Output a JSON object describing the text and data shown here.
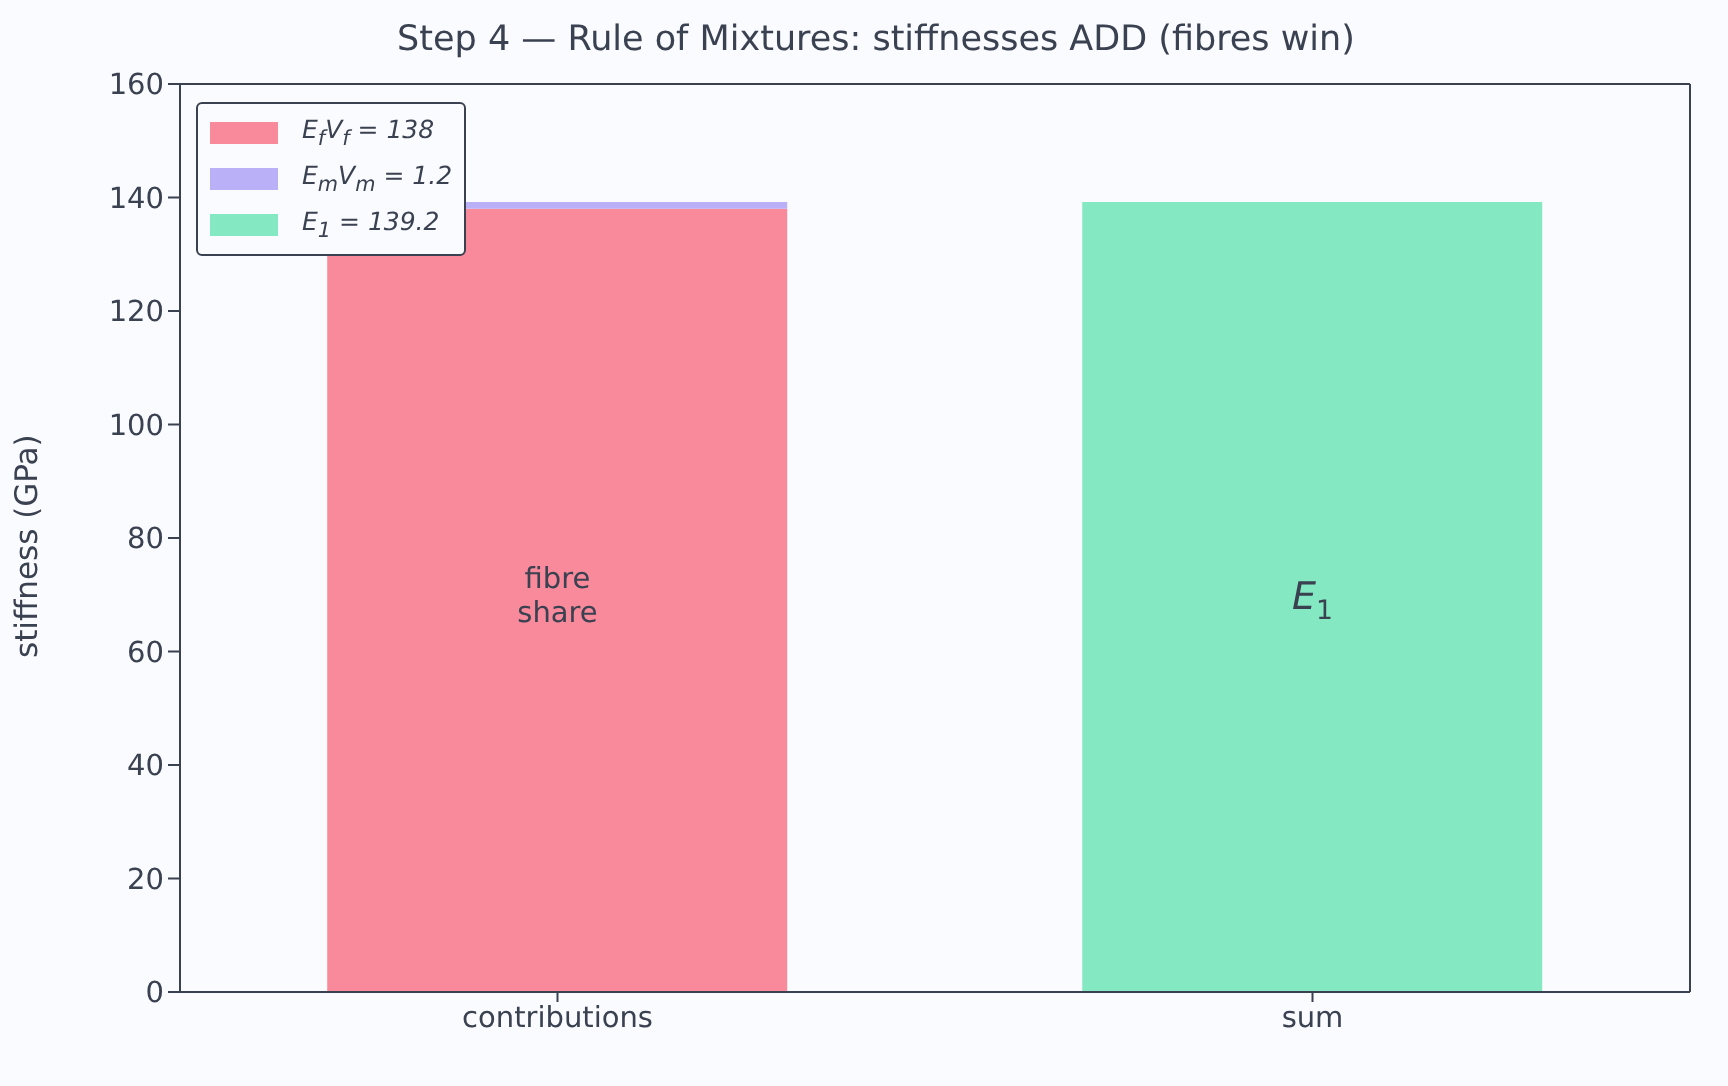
{
  "chart_data": {
    "type": "bar",
    "title": "Step 4 — Rule of Mixtures: stiffnesses ADD (fibres win)",
    "ylabel": "stiffness (GPa)",
    "categories": [
      "contributions",
      "sum"
    ],
    "stacked": true,
    "series": [
      {
        "name": "E$_{f}$V$_{f}$ = 138",
        "color": "#f98a9b",
        "values": [
          138,
          null
        ]
      },
      {
        "name": "E$_{m}$V$_{m}$ = 1.2",
        "color": "#b9b0f8",
        "values": [
          1.2,
          null
        ]
      },
      {
        "name": "E$_{1}$ = 139.2",
        "color": "#84e9c2",
        "values": [
          null,
          139.2
        ]
      }
    ],
    "ylim": [
      0,
      160
    ],
    "yticks": [
      0,
      20,
      40,
      60,
      80,
      100,
      120,
      140,
      160
    ],
    "grid": false,
    "legend": "top left",
    "annotations": [
      "fibre\nshare",
      "E$_{1}$"
    ]
  }
}
